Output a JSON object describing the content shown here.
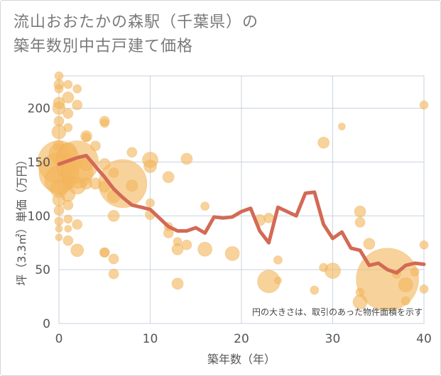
{
  "chart_data": {
    "type": "scatter",
    "title_lines": [
      "流山おおたかの森駅（千葉県）の",
      "築年数別中古戸建て価格"
    ],
    "xlabel": "築年数（年）",
    "ylabel": "坪（3.3㎡）単価（万円）",
    "xlim": [
      0,
      40
    ],
    "ylim": [
      0,
      230
    ],
    "xticks": [
      0,
      10,
      20,
      30,
      40
    ],
    "yticks": [
      0,
      50,
      100,
      150,
      200
    ],
    "grid": true,
    "note": "円の大きさは、取引のあった物件面積を示す",
    "colors": {
      "bubble": "#f3b75e",
      "line": "#d36a55",
      "grid": "#c9d3de"
    },
    "bubbles": [
      {
        "x": 0,
        "y": 230,
        "s": 6
      },
      {
        "x": 0,
        "y": 222,
        "s": 7
      },
      {
        "x": 0,
        "y": 218,
        "s": 6
      },
      {
        "x": 0,
        "y": 205,
        "s": 8
      },
      {
        "x": 0,
        "y": 200,
        "s": 9
      },
      {
        "x": 0,
        "y": 188,
        "s": 7
      },
      {
        "x": 0,
        "y": 178,
        "s": 10
      },
      {
        "x": 0,
        "y": 165,
        "s": 8
      },
      {
        "x": 0,
        "y": 158,
        "s": 14
      },
      {
        "x": 0,
        "y": 150,
        "s": 30
      },
      {
        "x": 0,
        "y": 140,
        "s": 28
      },
      {
        "x": 0,
        "y": 133,
        "s": 20
      },
      {
        "x": 0,
        "y": 125,
        "s": 12
      },
      {
        "x": 0,
        "y": 115,
        "s": 9
      },
      {
        "x": 0,
        "y": 105,
        "s": 7
      },
      {
        "x": 0,
        "y": 95,
        "s": 6
      },
      {
        "x": 0,
        "y": 88,
        "s": 5
      },
      {
        "x": 0,
        "y": 80,
        "s": 5
      },
      {
        "x": 1,
        "y": 222,
        "s": 6
      },
      {
        "x": 1,
        "y": 210,
        "s": 8
      },
      {
        "x": 1,
        "y": 195,
        "s": 7
      },
      {
        "x": 1,
        "y": 182,
        "s": 6
      },
      {
        "x": 1,
        "y": 160,
        "s": 12
      },
      {
        "x": 1,
        "y": 145,
        "s": 9
      },
      {
        "x": 1,
        "y": 132,
        "s": 8
      },
      {
        "x": 1,
        "y": 120,
        "s": 10
      },
      {
        "x": 1,
        "y": 110,
        "s": 7
      },
      {
        "x": 1,
        "y": 97,
        "s": 6
      },
      {
        "x": 1,
        "y": 88,
        "s": 5
      },
      {
        "x": 1,
        "y": 77,
        "s": 7
      },
      {
        "x": 2,
        "y": 218,
        "s": 6
      },
      {
        "x": 2,
        "y": 203,
        "s": 7
      },
      {
        "x": 2,
        "y": 150,
        "s": 30
      },
      {
        "x": 2,
        "y": 140,
        "s": 22
      },
      {
        "x": 2,
        "y": 128,
        "s": 12
      },
      {
        "x": 2,
        "y": 92,
        "s": 7
      },
      {
        "x": 2,
        "y": 68,
        "s": 9
      },
      {
        "x": 3,
        "y": 174,
        "s": 8
      },
      {
        "x": 3,
        "y": 173,
        "s": 6
      },
      {
        "x": 3,
        "y": 148,
        "s": 9
      },
      {
        "x": 3,
        "y": 130,
        "s": 8
      },
      {
        "x": 4,
        "y": 165,
        "s": 7
      },
      {
        "x": 4,
        "y": 130,
        "s": 8
      },
      {
        "x": 5,
        "y": 188,
        "s": 7
      },
      {
        "x": 5,
        "y": 186,
        "s": 6
      },
      {
        "x": 5,
        "y": 148,
        "s": 8
      },
      {
        "x": 5,
        "y": 127,
        "s": 8
      },
      {
        "x": 5,
        "y": 66,
        "s": 7
      },
      {
        "x": 5,
        "y": 66,
        "s": 6
      },
      {
        "x": 6,
        "y": 140,
        "s": 7
      },
      {
        "x": 6,
        "y": 118,
        "s": 9
      },
      {
        "x": 6,
        "y": 100,
        "s": 8
      },
      {
        "x": 6,
        "y": 60,
        "s": 7
      },
      {
        "x": 6,
        "y": 46,
        "s": 7
      },
      {
        "x": 7,
        "y": 130,
        "s": 34
      },
      {
        "x": 8,
        "y": 159,
        "s": 7
      },
      {
        "x": 8,
        "y": 128,
        "s": 8
      },
      {
        "x": 10,
        "y": 152,
        "s": 11
      },
      {
        "x": 10,
        "y": 146,
        "s": 9
      },
      {
        "x": 10,
        "y": 101,
        "s": 7
      },
      {
        "x": 10,
        "y": 112,
        "s": 6
      },
      {
        "x": 12,
        "y": 136,
        "s": 8
      },
      {
        "x": 12,
        "y": 84,
        "s": 7
      },
      {
        "x": 12,
        "y": 90,
        "s": 6
      },
      {
        "x": 13,
        "y": 76,
        "s": 6
      },
      {
        "x": 13,
        "y": 69,
        "s": 8
      },
      {
        "x": 13,
        "y": 37,
        "s": 8
      },
      {
        "x": 14,
        "y": 153,
        "s": 8
      },
      {
        "x": 14,
        "y": 73,
        "s": 7
      },
      {
        "x": 16,
        "y": 109,
        "s": 6
      },
      {
        "x": 16,
        "y": 69,
        "s": 10
      },
      {
        "x": 19,
        "y": 65,
        "s": 10
      },
      {
        "x": 22,
        "y": 96,
        "s": 8
      },
      {
        "x": 23,
        "y": 98,
        "s": 7
      },
      {
        "x": 23,
        "y": 39,
        "s": 16
      },
      {
        "x": 24,
        "y": 59,
        "s": 6
      },
      {
        "x": 24,
        "y": 40,
        "s": 5
      },
      {
        "x": 28,
        "y": 31,
        "s": 6
      },
      {
        "x": 29,
        "y": 168,
        "s": 8
      },
      {
        "x": 29,
        "y": 52,
        "s": 6
      },
      {
        "x": 30,
        "y": 49,
        "s": 11
      },
      {
        "x": 31,
        "y": 183,
        "s": 5
      },
      {
        "x": 33,
        "y": 104,
        "s": 8
      },
      {
        "x": 33,
        "y": 94,
        "s": 7
      },
      {
        "x": 33,
        "y": 29,
        "s": 6
      },
      {
        "x": 33,
        "y": 20,
        "s": 10
      },
      {
        "x": 34,
        "y": 74,
        "s": 8
      },
      {
        "x": 36,
        "y": 41,
        "s": 44
      },
      {
        "x": 37,
        "y": 46,
        "s": 6
      },
      {
        "x": 38,
        "y": 36,
        "s": 10
      },
      {
        "x": 38,
        "y": 21,
        "s": 6
      },
      {
        "x": 39,
        "y": 48,
        "s": 6
      },
      {
        "x": 40,
        "y": 203,
        "s": 6
      },
      {
        "x": 40,
        "y": 73,
        "s": 6
      },
      {
        "x": 40,
        "y": 32,
        "s": 6
      }
    ],
    "trend": {
      "name": "",
      "x": [
        0,
        1,
        2,
        3,
        4,
        5,
        6,
        7,
        8,
        9,
        10,
        11,
        12,
        13,
        14,
        15,
        16,
        17,
        18,
        19,
        20,
        21,
        22,
        23,
        24,
        25,
        26,
        27,
        28,
        29,
        30,
        31,
        32,
        33,
        34,
        35,
        36,
        37,
        38,
        39,
        40
      ],
      "y": [
        148,
        151,
        154,
        156,
        146,
        136,
        125,
        117,
        110,
        108,
        106,
        98,
        90,
        86,
        86,
        89,
        84,
        99,
        98,
        99,
        104,
        107,
        86,
        75,
        108,
        104,
        100,
        121,
        122,
        92,
        79,
        85,
        70,
        68,
        54,
        56,
        50,
        47,
        54,
        56,
        55
      ]
    }
  }
}
